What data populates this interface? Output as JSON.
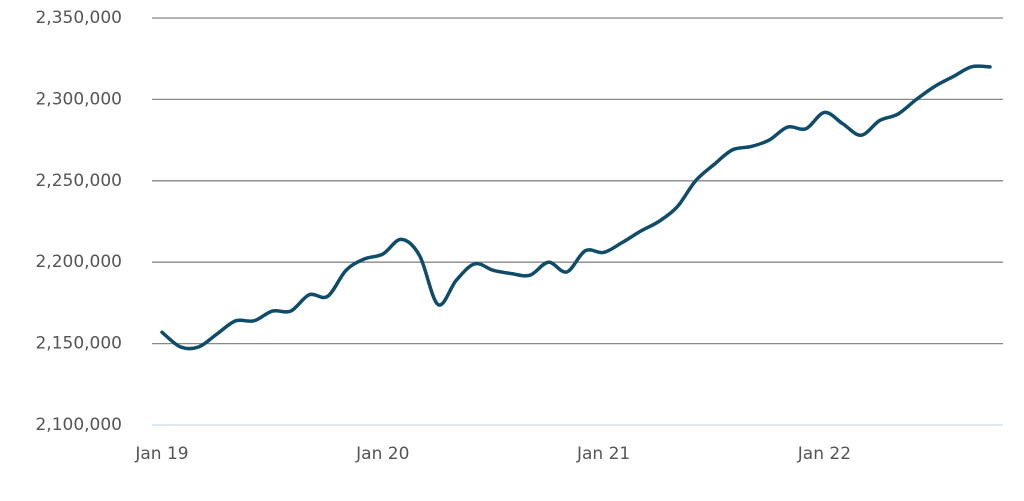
{
  "chart_data": {
    "type": "line",
    "categories": [
      "Jan 19",
      null,
      null,
      null,
      null,
      null,
      null,
      null,
      null,
      null,
      null,
      null,
      "Jan 20",
      null,
      null,
      null,
      null,
      null,
      null,
      null,
      null,
      null,
      null,
      null,
      "Jan 21",
      null,
      null,
      null,
      null,
      null,
      null,
      null,
      null,
      null,
      null,
      null,
      "Jan 22",
      null,
      null,
      null,
      null,
      null,
      null,
      null,
      null,
      null
    ],
    "series": [
      {
        "color": "#0f4c69",
        "values": [
          2157000,
          2148000,
          2148000,
          2156000,
          2164000,
          2164000,
          2170000,
          2170000,
          2180000,
          2179000,
          2195000,
          2202000,
          2205000,
          2214000,
          2204000,
          2174000,
          2189000,
          2199000,
          2195000,
          2193000,
          2192000,
          2200000,
          2194000,
          2207000,
          2206000,
          2212000,
          2219000,
          2225000,
          2234000,
          2250000,
          2260000,
          2269000,
          2271000,
          2275000,
          2283000,
          2282000,
          2292000,
          2285000,
          2278000,
          2287000,
          2291000,
          2300000,
          2308000,
          2314000,
          2320000,
          2320000
        ]
      }
    ],
    "ylim": [
      2100000,
      2350000
    ],
    "yticks": [
      {
        "value": 2100000,
        "label": "2,100,000"
      },
      {
        "value": 2150000,
        "label": "2,150,000"
      },
      {
        "value": 2200000,
        "label": "2,200,000"
      },
      {
        "value": 2250000,
        "label": "2,250,000"
      },
      {
        "value": 2300000,
        "label": "2,300,000"
      },
      {
        "value": 2350000,
        "label": "2,350,000"
      }
    ],
    "grid": true
  }
}
